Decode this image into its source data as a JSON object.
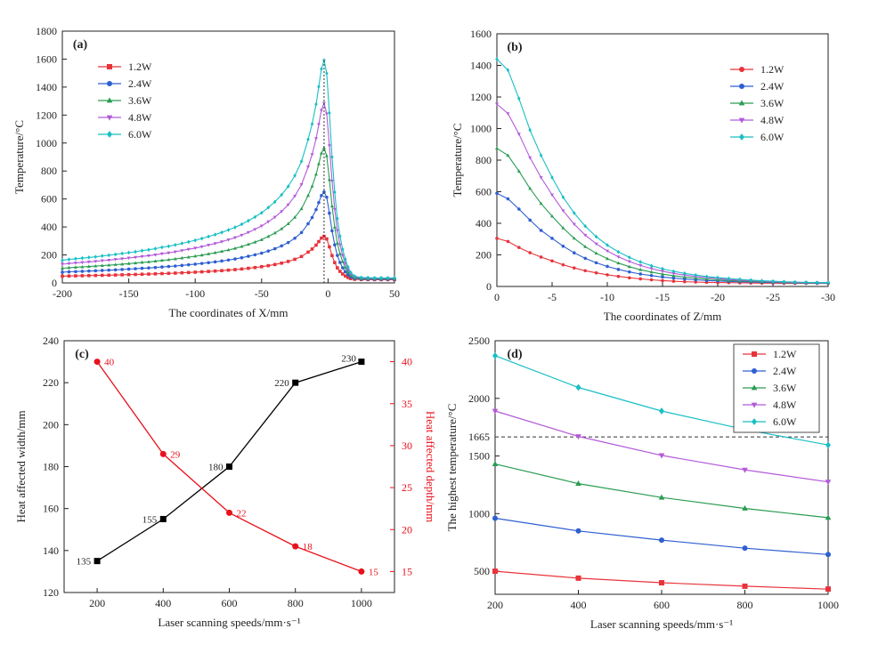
{
  "chart_data": [
    {
      "panel": "(a)",
      "type": "line",
      "xlabel": "The coordinates of X/mm",
      "ylabel": "Temperature/°C",
      "xlim": [
        -200,
        50
      ],
      "ylim": [
        0,
        1800
      ],
      "xticks": [
        -200,
        -150,
        -100,
        -50,
        0,
        50
      ],
      "yticks": [
        0,
        200,
        400,
        600,
        800,
        1000,
        1200,
        1400,
        1600,
        1800
      ],
      "x": [
        -200,
        -195,
        -190,
        -185,
        -180,
        -175,
        -170,
        -165,
        -160,
        -155,
        -150,
        -145,
        -140,
        -135,
        -130,
        -125,
        -120,
        -115,
        -110,
        -105,
        -100,
        -95,
        -90,
        -85,
        -80,
        -75,
        -70,
        -65,
        -60,
        -55,
        -50,
        -45,
        -40,
        -35,
        -30,
        -25,
        -20,
        -15,
        -12,
        -9,
        -7,
        -5,
        -3,
        -1,
        1,
        3,
        5,
        7,
        9,
        11,
        13,
        15,
        17,
        20,
        25,
        30,
        35,
        40,
        45,
        50
      ],
      "series": [
        {
          "name": "1.2W",
          "peak": 333,
          "color": "#e8333b",
          "marker": "square"
        },
        {
          "name": "2.4W",
          "peak": 650,
          "color": "#2e5fd1",
          "marker": "circle"
        },
        {
          "name": "3.6W",
          "peak": 965,
          "color": "#2a9c52",
          "marker": "triangle-up"
        },
        {
          "name": "4.8W",
          "peak": 1285,
          "color": "#b25ad9",
          "marker": "triangle-down"
        },
        {
          "name": "6.0W",
          "peak": 1592,
          "color": "#19bfc4",
          "marker": "diamond"
        }
      ],
      "profile": [
        0.09,
        0.094,
        0.097,
        0.1,
        0.103,
        0.106,
        0.11,
        0.113,
        0.117,
        0.121,
        0.125,
        0.129,
        0.134,
        0.138,
        0.143,
        0.149,
        0.154,
        0.16,
        0.167,
        0.174,
        0.181,
        0.189,
        0.198,
        0.207,
        0.217,
        0.228,
        0.24,
        0.254,
        0.27,
        0.287,
        0.306,
        0.33,
        0.356,
        0.388,
        0.426,
        0.475,
        0.54,
        0.64,
        0.71,
        0.8,
        0.88,
        0.96,
        1.0,
        0.94,
        0.76,
        0.56,
        0.4,
        0.28,
        0.2,
        0.14,
        0.095,
        0.06,
        0.035,
        0.018,
        0.012,
        0.011,
        0.01,
        0.01,
        0.01,
        0.01
      ],
      "annotation": "dashed vertical line at peak x = -3"
    },
    {
      "panel": "(b)",
      "type": "line",
      "xlabel": "The coordinates of Z/mm",
      "ylabel": "Temperature/°C",
      "xlim": [
        0,
        -30
      ],
      "ylim": [
        0,
        1600
      ],
      "xticks": [
        0,
        -5,
        -10,
        -15,
        -20,
        -25,
        -30
      ],
      "yticks": [
        0,
        200,
        400,
        600,
        800,
        1000,
        1200,
        1400,
        1600
      ],
      "x": [
        0,
        -1,
        -2,
        -3,
        -4,
        -5,
        -6,
        -7,
        -8,
        -9,
        -10,
        -11,
        -12,
        -13,
        -14,
        -15,
        -16,
        -17,
        -18,
        -19,
        -20,
        -21,
        -22,
        -23,
        -24,
        -25,
        -26,
        -27,
        -28,
        -29,
        -30
      ],
      "series": [
        {
          "name": "1.2W",
          "color": "#e8333b",
          "marker": "circle",
          "values": [
            305,
            285,
            247,
            214,
            186,
            162,
            137,
            117,
            100,
            86,
            74,
            64,
            55,
            48,
            42,
            37,
            33,
            30,
            28,
            26,
            25,
            24,
            23,
            22,
            21,
            21,
            20,
            20,
            20,
            20,
            20
          ]
        },
        {
          "name": "2.4W",
          "color": "#2e5fd1",
          "marker": "circle",
          "values": [
            590,
            555,
            490,
            420,
            355,
            305,
            255,
            213,
            178,
            150,
            127,
            108,
            92,
            79,
            69,
            60,
            53,
            47,
            42,
            38,
            35,
            32,
            30,
            28,
            26,
            25,
            24,
            23,
            22,
            21,
            21
          ]
        },
        {
          "name": "3.6W",
          "color": "#2a9c52",
          "marker": "triangle-up",
          "values": [
            875,
            830,
            730,
            620,
            525,
            445,
            370,
            305,
            252,
            210,
            176,
            148,
            125,
            106,
            91,
            78,
            68,
            60,
            53,
            47,
            42,
            38,
            35,
            32,
            30,
            28,
            26,
            25,
            24,
            23,
            22
          ]
        },
        {
          "name": "4.8W",
          "color": "#b25ad9",
          "marker": "triangle-down",
          "values": [
            1155,
            1095,
            965,
            815,
            690,
            580,
            480,
            395,
            325,
            270,
            225,
            188,
            158,
            133,
            113,
            97,
            83,
            72,
            63,
            56,
            50,
            44,
            40,
            36,
            33,
            30,
            28,
            26,
            25,
            24,
            23
          ]
        },
        {
          "name": "6.0W",
          "color": "#19bfc4",
          "marker": "diamond",
          "values": [
            1440,
            1370,
            1190,
            990,
            830,
            690,
            565,
            465,
            382,
            315,
            262,
            219,
            184,
            155,
            131,
            112,
            96,
            83,
            72,
            63,
            56,
            50,
            45,
            40,
            36,
            33,
            30,
            28,
            26,
            25,
            24
          ]
        }
      ]
    },
    {
      "panel": "(c)",
      "type": "line",
      "xlabel": "Laser scanning speeds/mm·s⁻¹",
      "ylabel": "Heat affected width/mm",
      "ylabel_right": "Heat affected depth/mm",
      "xlim": [
        100,
        1100
      ],
      "ylim": [
        120,
        240
      ],
      "ylim_right": [
        12.5,
        42.5
      ],
      "xticks": [
        200,
        400,
        600,
        800,
        1000
      ],
      "yticks": [
        120,
        140,
        160,
        180,
        200,
        220,
        240
      ],
      "yticks_right": [
        15,
        20,
        25,
        30,
        35,
        40
      ],
      "x": [
        200,
        400,
        600,
        800,
        1000
      ],
      "series": [
        {
          "name": "Heat affected width",
          "axis": "left",
          "color": "#000000",
          "marker": "square",
          "values": [
            135,
            155,
            180,
            220,
            230
          ],
          "labels": [
            "135",
            "155",
            "180",
            "220",
            "230"
          ]
        },
        {
          "name": "Heat affected depth",
          "axis": "right",
          "color": "#e8111b",
          "marker": "circle",
          "values": [
            40,
            29,
            22,
            18,
            15
          ],
          "labels": [
            "40",
            "29",
            "22",
            "18",
            "15"
          ]
        }
      ]
    },
    {
      "panel": "(d)",
      "type": "line",
      "xlabel": "Laser scanning speeds/mm·s⁻¹",
      "ylabel": "The highest temperature/°C",
      "xlim": [
        200,
        1000
      ],
      "ylim": [
        300,
        2500
      ],
      "xticks": [
        200,
        400,
        600,
        800,
        1000
      ],
      "yticks": [
        500,
        1000,
        1500,
        2000,
        2500
      ],
      "reference_line": {
        "value": 1665,
        "label": "1665"
      },
      "x": [
        200,
        400,
        600,
        800,
        1000
      ],
      "series": [
        {
          "name": "1.2W",
          "color": "#e8333b",
          "marker": "square",
          "values": [
            500,
            440,
            400,
            370,
            345
          ]
        },
        {
          "name": "2.4W",
          "color": "#2e5fd1",
          "marker": "circle",
          "values": [
            960,
            850,
            770,
            700,
            645
          ]
        },
        {
          "name": "3.6W",
          "color": "#2a9c52",
          "marker": "triangle-up",
          "values": [
            1430,
            1260,
            1140,
            1045,
            965
          ]
        },
        {
          "name": "4.8W",
          "color": "#b25ad9",
          "marker": "triangle-down",
          "values": [
            1890,
            1670,
            1505,
            1380,
            1275
          ]
        },
        {
          "name": "6.0W",
          "color": "#19bfc4",
          "marker": "diamond",
          "values": [
            2370,
            2095,
            1890,
            1730,
            1595
          ]
        }
      ]
    }
  ]
}
